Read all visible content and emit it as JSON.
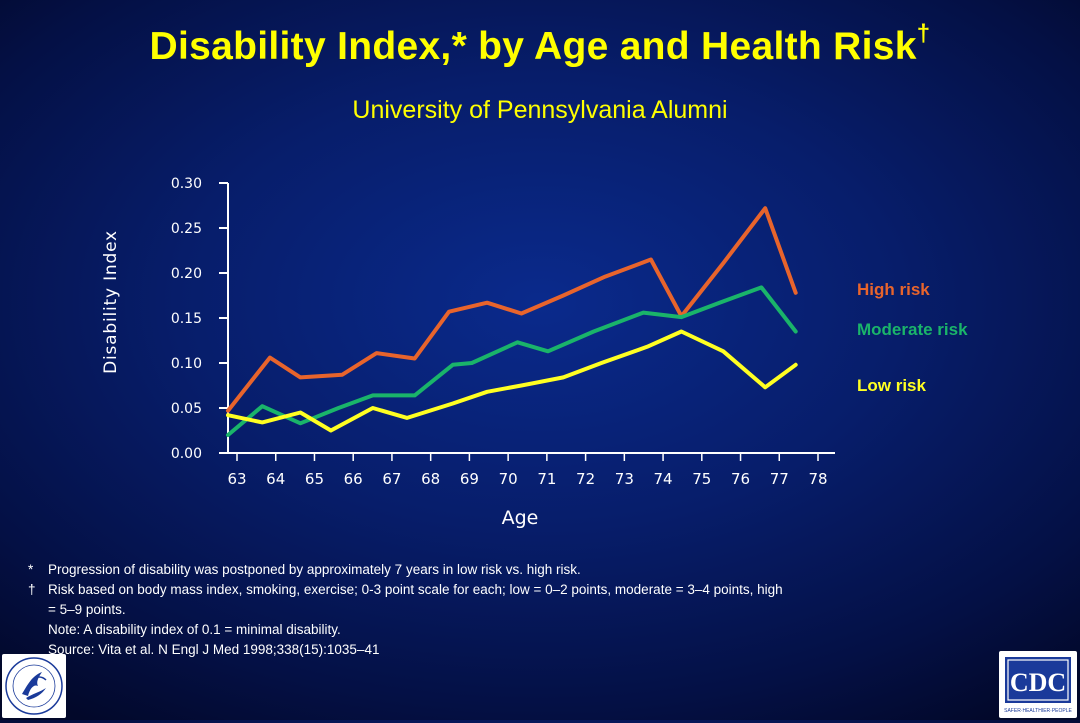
{
  "header": {
    "title": "Disability Index,* by Age and Health Risk",
    "title_dagger": "†",
    "subtitle": "University of Pennsylvania Alumni"
  },
  "chart_data": {
    "type": "line",
    "xlabel": "Age",
    "ylabel": "Disability Index",
    "ylim": [
      0,
      0.3
    ],
    "yticks": [
      "0.00",
      "0.05",
      "0.10",
      "0.15",
      "0.20",
      "0.25",
      "0.30"
    ],
    "xticks": [
      "63",
      "64",
      "65",
      "66",
      "67",
      "68",
      "69",
      "70",
      "71",
      "72",
      "73",
      "74",
      "75",
      "76",
      "77",
      "78"
    ],
    "xlim": [
      62.6,
      78.9
    ],
    "grid": false,
    "legend": "right (inline labels at line ends)",
    "series": [
      {
        "name": "High risk",
        "color": "#e8642c",
        "points": [
          [
            62.6,
            0.047
          ],
          [
            63.7,
            0.106
          ],
          [
            64.5,
            0.084
          ],
          [
            65.6,
            0.087
          ],
          [
            66.5,
            0.111
          ],
          [
            67.5,
            0.105
          ],
          [
            68.4,
            0.157
          ],
          [
            69.4,
            0.167
          ],
          [
            70.3,
            0.155
          ],
          [
            71.4,
            0.175
          ],
          [
            72.5,
            0.196
          ],
          [
            73.7,
            0.215
          ],
          [
            74.5,
            0.152
          ],
          [
            75.6,
            0.211
          ],
          [
            76.7,
            0.272
          ],
          [
            77.5,
            0.178
          ]
        ]
      },
      {
        "name": "Moderate risk",
        "color": "#1ab46a",
        "points": [
          [
            62.6,
            0.02
          ],
          [
            63.5,
            0.052
          ],
          [
            64.5,
            0.033
          ],
          [
            65.5,
            0.05
          ],
          [
            66.4,
            0.064
          ],
          [
            67.5,
            0.064
          ],
          [
            68.5,
            0.098
          ],
          [
            69.0,
            0.1
          ],
          [
            70.2,
            0.123
          ],
          [
            71.0,
            0.113
          ],
          [
            72.2,
            0.135
          ],
          [
            73.5,
            0.156
          ],
          [
            74.5,
            0.151
          ],
          [
            75.5,
            0.167
          ],
          [
            76.6,
            0.184
          ],
          [
            77.5,
            0.135
          ]
        ]
      },
      {
        "name": "Low risk",
        "color": "#ffff22",
        "points": [
          [
            62.6,
            0.042
          ],
          [
            63.5,
            0.034
          ],
          [
            64.5,
            0.045
          ],
          [
            65.3,
            0.025
          ],
          [
            66.4,
            0.05
          ],
          [
            67.3,
            0.039
          ],
          [
            68.5,
            0.055
          ],
          [
            69.4,
            0.068
          ],
          [
            70.3,
            0.075
          ],
          [
            71.4,
            0.084
          ],
          [
            72.4,
            0.1
          ],
          [
            73.6,
            0.118
          ],
          [
            74.5,
            0.135
          ],
          [
            75.6,
            0.113
          ],
          [
            76.7,
            0.073
          ],
          [
            77.5,
            0.098
          ]
        ]
      }
    ]
  },
  "footnotes": [
    {
      "mark": "*",
      "text": "Progression of disability was postponed by approximately 7 years in low risk vs. high risk."
    },
    {
      "mark": "†",
      "text": "Risk based on body mass index, smoking, exercise; 0-3 point scale for each; low = 0–2 points, moderate = 3–4 points, high = 5–9 points."
    },
    {
      "mark": "",
      "text": "Note: A disability index of 0.1 = minimal disability."
    },
    {
      "mark": "",
      "text": "Source: Vita et al. N Engl J Med 1998;338(15):1035–41"
    }
  ],
  "logos": {
    "left": "hhs-seal-logo",
    "left_text": "DEPARTMENT OF HEALTH & HUMAN SERVICES · USA",
    "right": "cdc-logo",
    "right_text": "CDC",
    "right_tagline": "SAFER·HEALTHIER·PEOPLE"
  },
  "colors": {
    "title": "#ffff00",
    "background": "#071d6a",
    "axis": "#ffffff",
    "cdc_blue": "#1a3a9a"
  }
}
